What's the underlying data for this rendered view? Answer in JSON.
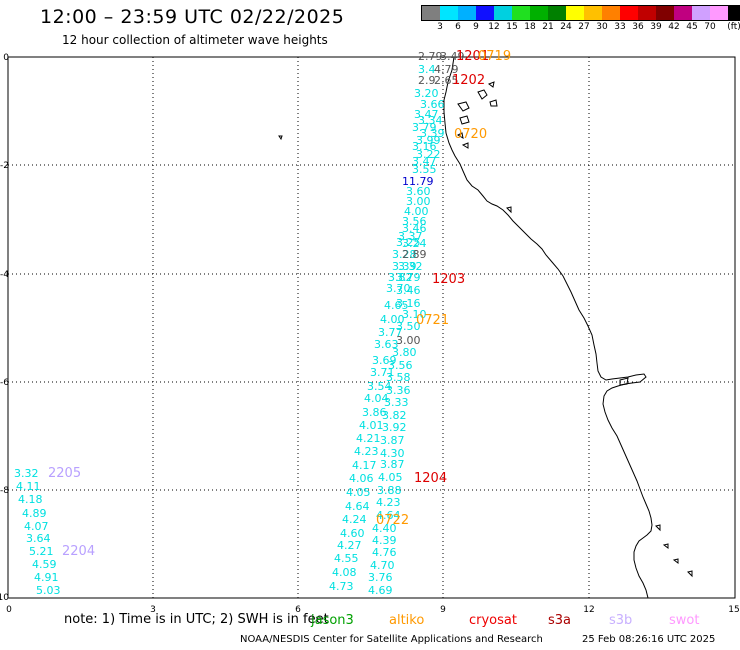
{
  "header": {
    "title": "12:00 – 23:59 UTC 02/22/2025",
    "subtitle": "12 hour collection of altimeter wave heights"
  },
  "legend": {
    "unit": "(ft)",
    "colors": [
      "#7f7f7f",
      "#00e5ff",
      "#00b0ff",
      "#1010ff",
      "#00d0e0",
      "#20e020",
      "#00b000",
      "#008000",
      "#ffff00",
      "#ffc000",
      "#ff8000",
      "#ff0000",
      "#c00000",
      "#800000",
      "#c00080",
      "#d0a0ff",
      "#ff99ff",
      "#000000"
    ],
    "labels": [
      "3",
      "6",
      "9",
      "12",
      "15",
      "18",
      "21",
      "24",
      "27",
      "30",
      "33",
      "36",
      "39",
      "42",
      "45",
      "70"
    ]
  },
  "axes": {
    "x_ticks": [
      "0",
      "3",
      "6",
      "9",
      "12",
      "15"
    ],
    "y_ticks": [
      "0",
      "-2",
      "-4",
      "-6",
      "-8",
      "-10"
    ]
  },
  "colors": {
    "cyan": "#00e0e0",
    "red": "#dd0000",
    "orange": "#ff9900",
    "lavender": "#b8a0ff",
    "grey": "#555555",
    "blue": "#0000cc",
    "jason_green": "#00a000",
    "cryosat_red": "#ee0000",
    "s3a_red": "#aa0000",
    "s3b_lavender": "#c8b0ff",
    "swot_pink": "#ff99ff"
  },
  "map_labels": [
    {
      "text": "2.79",
      "color": "grey"
    },
    {
      "text": "3.49",
      "color": "grey"
    },
    {
      "text": "1201",
      "color": "red"
    },
    {
      "text": "0719",
      "color": "orange"
    },
    {
      "text": "3.4",
      "color": "cyan"
    },
    {
      "text": "4.79",
      "color": "grey"
    },
    {
      "text": "2.9",
      "color": "grey"
    },
    {
      "text": "2.65",
      "color": "grey"
    },
    {
      "text": "1202",
      "color": "red"
    },
    {
      "text": "3.20",
      "color": "cyan"
    },
    {
      "text": "3.66",
      "color": "cyan"
    },
    {
      "text": "3.47",
      "color": "cyan"
    },
    {
      "text": "3.34",
      "color": "cyan"
    },
    {
      "text": "3.79",
      "color": "cyan"
    },
    {
      "text": "3.39",
      "color": "cyan"
    },
    {
      "text": "3.99",
      "color": "cyan"
    },
    {
      "text": "0720",
      "color": "orange"
    },
    {
      "text": "3.16",
      "color": "cyan"
    },
    {
      "text": "3.22",
      "color": "cyan"
    },
    {
      "text": "3.47",
      "color": "cyan"
    },
    {
      "text": "3.55",
      "color": "cyan"
    },
    {
      "text": "11.79",
      "color": "blue"
    },
    {
      "text": "3.60",
      "color": "cyan"
    },
    {
      "text": "3.00",
      "color": "cyan"
    },
    {
      "text": "4.00",
      "color": "cyan"
    },
    {
      "text": "3.56",
      "color": "cyan"
    },
    {
      "text": "3.46",
      "color": "cyan"
    },
    {
      "text": "3.37",
      "color": "cyan"
    },
    {
      "text": "3.25",
      "color": "cyan"
    },
    {
      "text": "3.24",
      "color": "cyan"
    },
    {
      "text": "3.28",
      "color": "cyan"
    },
    {
      "text": "2.89",
      "color": "grey"
    },
    {
      "text": "3.39",
      "color": "cyan"
    },
    {
      "text": "3.32",
      "color": "cyan"
    },
    {
      "text": "3.82",
      "color": "cyan"
    },
    {
      "text": "3.79",
      "color": "cyan"
    },
    {
      "text": "1203",
      "color": "red"
    },
    {
      "text": "3.70",
      "color": "cyan"
    },
    {
      "text": "3.46",
      "color": "cyan"
    },
    {
      "text": "3.16",
      "color": "cyan"
    },
    {
      "text": "4.65",
      "color": "cyan"
    },
    {
      "text": "3.10",
      "color": "cyan"
    },
    {
      "text": "4.00",
      "color": "cyan"
    },
    {
      "text": "3.50",
      "color": "cyan"
    },
    {
      "text": "0721",
      "color": "orange"
    },
    {
      "text": "3.77",
      "color": "cyan"
    },
    {
      "text": "3.00",
      "color": "grey"
    },
    {
      "text": "3.63",
      "color": "cyan"
    },
    {
      "text": "3.80",
      "color": "cyan"
    },
    {
      "text": "3.69",
      "color": "cyan"
    },
    {
      "text": "3.56",
      "color": "cyan"
    },
    {
      "text": "3.71",
      "color": "cyan"
    },
    {
      "text": "3.58",
      "color": "cyan"
    },
    {
      "text": "3.54",
      "color": "cyan"
    },
    {
      "text": "3.36",
      "color": "cyan"
    },
    {
      "text": "4.04",
      "color": "cyan"
    },
    {
      "text": "3.33",
      "color": "cyan"
    },
    {
      "text": "3.86",
      "color": "cyan"
    },
    {
      "text": "3.82",
      "color": "cyan"
    },
    {
      "text": "4.01",
      "color": "cyan"
    },
    {
      "text": "3.92",
      "color": "cyan"
    },
    {
      "text": "4.21",
      "color": "cyan"
    },
    {
      "text": "3.87",
      "color": "cyan"
    },
    {
      "text": "4.23",
      "color": "cyan"
    },
    {
      "text": "4.30",
      "color": "cyan"
    },
    {
      "text": "4.17",
      "color": "cyan"
    },
    {
      "text": "3.87",
      "color": "cyan"
    },
    {
      "text": "4.06",
      "color": "cyan"
    },
    {
      "text": "4.05",
      "color": "cyan"
    },
    {
      "text": "1204",
      "color": "red"
    },
    {
      "text": "4.05",
      "color": "cyan"
    },
    {
      "text": "3.88",
      "color": "cyan"
    },
    {
      "text": "4.64",
      "color": "cyan"
    },
    {
      "text": "4.23",
      "color": "cyan"
    },
    {
      "text": "4.24",
      "color": "cyan"
    },
    {
      "text": "4.64",
      "color": "cyan"
    },
    {
      "text": "0722",
      "color": "orange"
    },
    {
      "text": "4.60",
      "color": "cyan"
    },
    {
      "text": "4.40",
      "color": "cyan"
    },
    {
      "text": "4.27",
      "color": "cyan"
    },
    {
      "text": "4.39",
      "color": "cyan"
    },
    {
      "text": "4.55",
      "color": "cyan"
    },
    {
      "text": "4.76",
      "color": "cyan"
    },
    {
      "text": "4.08",
      "color": "cyan"
    },
    {
      "text": "4.70",
      "color": "cyan"
    },
    {
      "text": "4.73",
      "color": "cyan"
    },
    {
      "text": "3.76",
      "color": "cyan"
    },
    {
      "text": "4.69",
      "color": "cyan"
    },
    {
      "text": "3.32",
      "color": "cyan"
    },
    {
      "text": "2205",
      "color": "lavender"
    },
    {
      "text": "4.11",
      "color": "cyan"
    },
    {
      "text": "4.18",
      "color": "cyan"
    },
    {
      "text": "4.89",
      "color": "cyan"
    },
    {
      "text": "4.07",
      "color": "cyan"
    },
    {
      "text": "3.64",
      "color": "cyan"
    },
    {
      "text": "5.21",
      "color": "cyan"
    },
    {
      "text": "2204",
      "color": "lavender"
    },
    {
      "text": "4.59",
      "color": "cyan"
    },
    {
      "text": "4.91",
      "color": "cyan"
    },
    {
      "text": "5.03",
      "color": "cyan"
    }
  ],
  "footer": {
    "note": "note:  1) Time is in UTC; 2) SWH is in feet",
    "credit": "NOAA/NESDIS Center for Satellite Applications and Research",
    "timestamp": "25 Feb 08:26:16 UTC 2025",
    "satellites": [
      {
        "name": "jason3",
        "color": "jason_green"
      },
      {
        "name": "altiko",
        "color": "orange"
      },
      {
        "name": "cryosat",
        "color": "cryosat_red"
      },
      {
        "name": "s3a",
        "color": "s3a_red"
      },
      {
        "name": "s3b",
        "color": "s3b_lavender"
      },
      {
        "name": "swot",
        "color": "swot_pink"
      }
    ]
  }
}
